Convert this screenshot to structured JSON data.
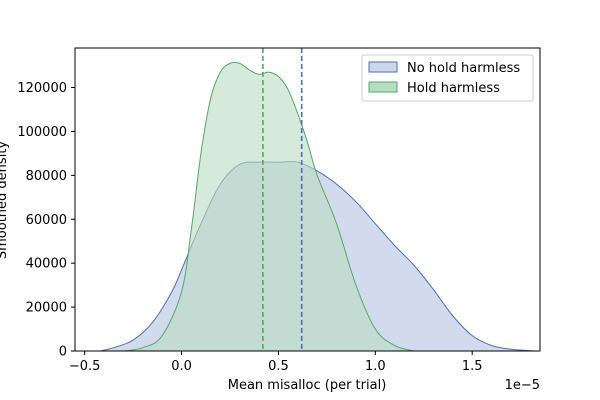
{
  "chart_data": {
    "type": "area",
    "xlabel": "Mean misalloc (per trial)",
    "ylabel": "Smoothed density",
    "x_offset_label": "1e−5",
    "xlim": [
      -0.55,
      1.85
    ],
    "ylim": [
      0,
      138000
    ],
    "x_ticks": [
      -0.5,
      0.0,
      0.5,
      1.0,
      1.5
    ],
    "x_tick_labels": [
      "−0.5",
      "0.0",
      "0.5",
      "1.0",
      "1.5"
    ],
    "y_ticks": [
      0,
      20000,
      40000,
      60000,
      80000,
      100000,
      120000
    ],
    "y_tick_labels": [
      "0",
      "20000",
      "40000",
      "60000",
      "80000",
      "100000",
      "120000"
    ],
    "legend_position": "top-right",
    "series": [
      {
        "name": "No hold harmless",
        "fill": "#cdd6eb",
        "stroke": "#4c72b0",
        "mean": 0.62,
        "x": [
          -0.42,
          -0.35,
          -0.25,
          -0.15,
          -0.05,
          0.0,
          0.1,
          0.2,
          0.3,
          0.4,
          0.5,
          0.6,
          0.7,
          0.8,
          0.9,
          1.0,
          1.1,
          1.2,
          1.3,
          1.4,
          1.5,
          1.6,
          1.7,
          1.83
        ],
        "y": [
          0,
          1500,
          5000,
          13000,
          27000,
          37000,
          58000,
          76000,
          85000,
          86000,
          86000,
          86000,
          82000,
          76000,
          68000,
          58000,
          48000,
          39000,
          28000,
          16000,
          7000,
          2500,
          800,
          0
        ]
      },
      {
        "name": "Hold harmless",
        "fill": "#b9dcc1",
        "stroke": "#55a868",
        "mean": 0.42,
        "x": [
          -0.3,
          -0.2,
          -0.1,
          0.0,
          0.05,
          0.1,
          0.15,
          0.2,
          0.25,
          0.3,
          0.35,
          0.4,
          0.45,
          0.5,
          0.55,
          0.6,
          0.65,
          0.7,
          0.8,
          0.9,
          1.0,
          1.1,
          1.2
        ],
        "y": [
          0,
          1500,
          7000,
          27000,
          55000,
          90000,
          115000,
          127000,
          131000,
          131000,
          128000,
          126000,
          127000,
          125000,
          119000,
          108000,
          95000,
          80000,
          58000,
          30000,
          10000,
          2500,
          0
        ]
      }
    ]
  }
}
